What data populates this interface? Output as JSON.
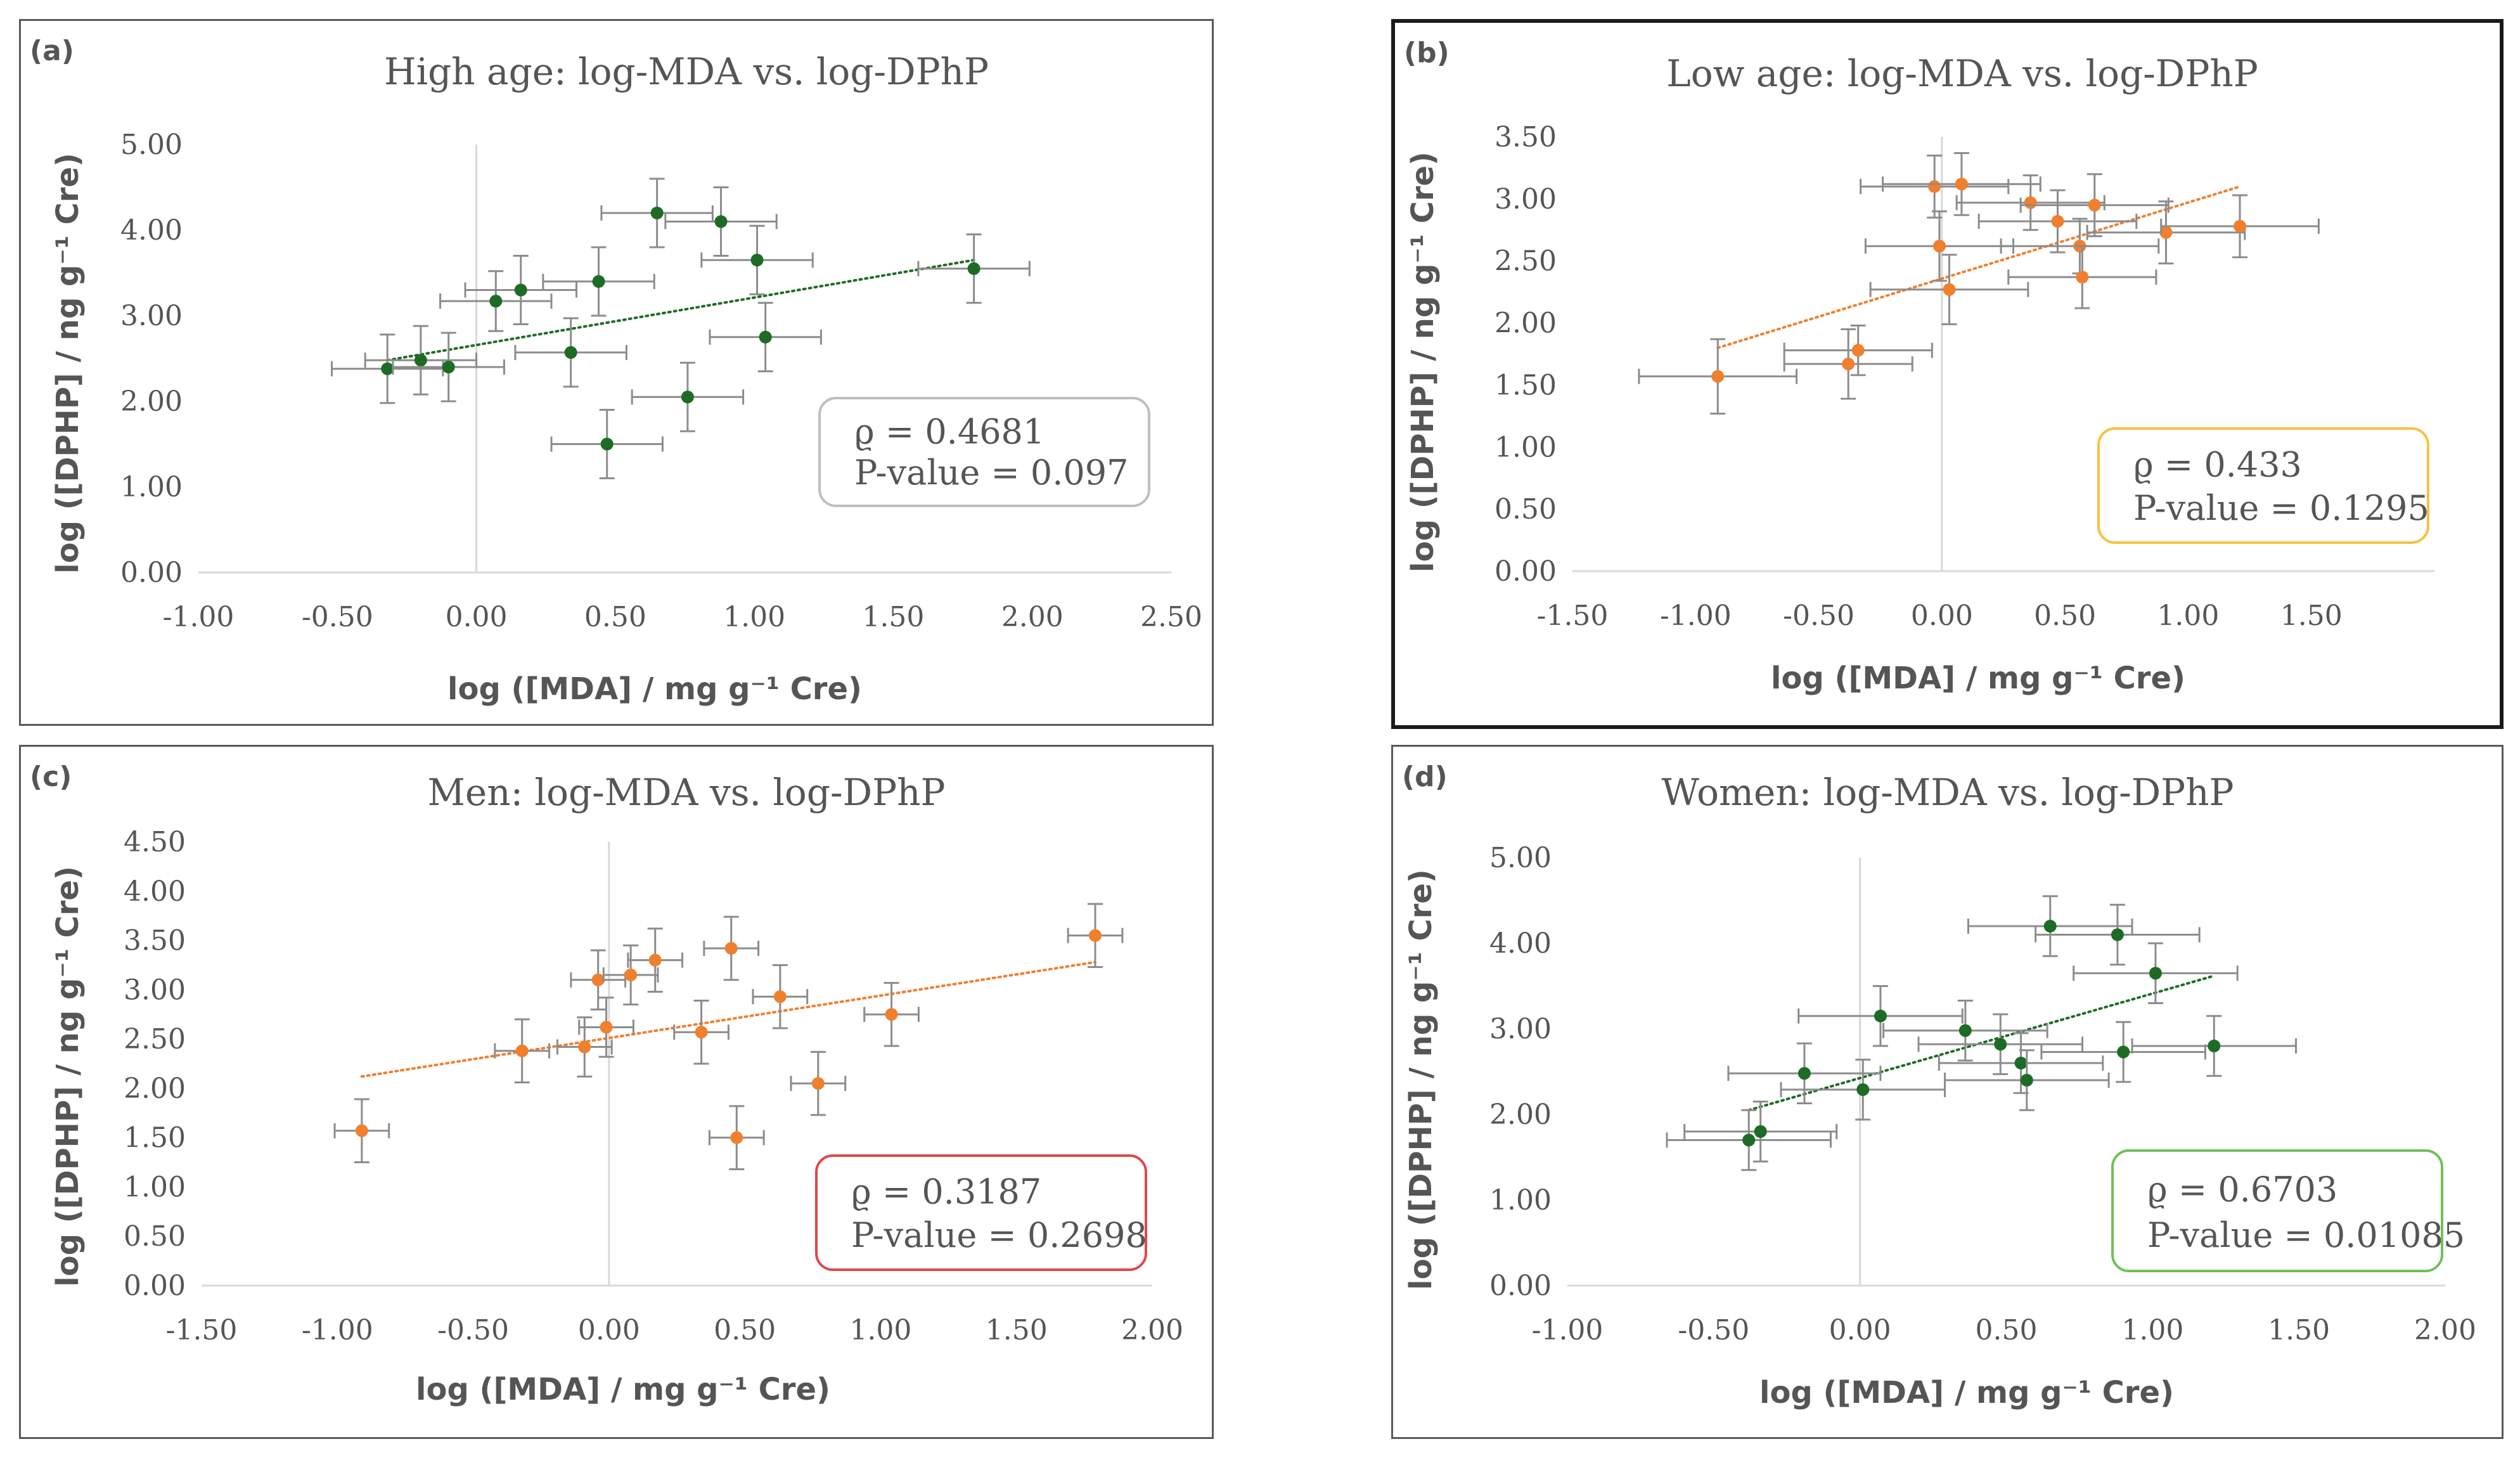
{
  "colors": {
    "green": "#1e6b25",
    "orange": "#f07f2e",
    "errorbar": "#8c8c8c",
    "axis": "#d9d9d9",
    "text": "#555555"
  },
  "chart_data": [
    {
      "panel": "(a)",
      "type": "scatter",
      "title": "High age: log-MDA vs. log-DPhP",
      "xlabel": "log ([MDA] / mg g⁻¹ Cre)",
      "ylabel": "log ([DPHP] / ng g⁻¹ Cre)",
      "xlim": [
        -1.0,
        2.5
      ],
      "ylim": [
        0.0,
        5.0
      ],
      "xticks": [
        "-1.00",
        "-0.50",
        "0.00",
        "0.50",
        "1.00",
        "1.50",
        "2.00",
        "2.50"
      ],
      "yticks": [
        "0.00",
        "1.00",
        "2.00",
        "3.00",
        "4.00",
        "5.00"
      ],
      "series_color": "green",
      "points": [
        {
          "x": -0.32,
          "y": 2.38,
          "xerr": 0.2,
          "yerr": 0.4
        },
        {
          "x": -0.2,
          "y": 2.48,
          "xerr": 0.2,
          "yerr": 0.4
        },
        {
          "x": -0.1,
          "y": 2.4,
          "xerr": 0.2,
          "yerr": 0.4
        },
        {
          "x": 0.07,
          "y": 3.17,
          "xerr": 0.2,
          "yerr": 0.35
        },
        {
          "x": 0.16,
          "y": 3.3,
          "xerr": 0.2,
          "yerr": 0.4
        },
        {
          "x": 0.34,
          "y": 2.57,
          "xerr": 0.2,
          "yerr": 0.4
        },
        {
          "x": 0.44,
          "y": 3.4,
          "xerr": 0.2,
          "yerr": 0.4
        },
        {
          "x": 0.47,
          "y": 1.5,
          "xerr": 0.2,
          "yerr": 0.4
        },
        {
          "x": 0.65,
          "y": 4.2,
          "xerr": 0.2,
          "yerr": 0.4
        },
        {
          "x": 0.76,
          "y": 2.05,
          "xerr": 0.2,
          "yerr": 0.4
        },
        {
          "x": 0.88,
          "y": 4.1,
          "xerr": 0.2,
          "yerr": 0.4
        },
        {
          "x": 1.01,
          "y": 3.65,
          "xerr": 0.2,
          "yerr": 0.4
        },
        {
          "x": 1.04,
          "y": 2.75,
          "xerr": 0.2,
          "yerr": 0.4
        },
        {
          "x": 1.79,
          "y": 3.55,
          "xerr": 0.2,
          "yerr": 0.4
        }
      ],
      "trendline": {
        "x": [
          -0.32,
          1.79
        ],
        "y": [
          2.48,
          3.65
        ]
      },
      "stats": {
        "rho": "ϱ = 0.4681",
        "p": "P-value = 0.097",
        "box_color": "#bfbfbf"
      }
    },
    {
      "panel": "(b)",
      "type": "scatter",
      "title": "Low age: log-MDA vs. log-DPhP",
      "xlabel": "log ([MDA] / mg g⁻¹ Cre)",
      "ylabel": "log ([DPHP] / ng g⁻¹ Cre)",
      "xlim": [
        -1.5,
        2.0
      ],
      "ylim": [
        0.0,
        3.5
      ],
      "xticks": [
        "-1.50",
        "-1.00",
        "-0.50",
        "0.00",
        "0.50",
        "1.00",
        "1.50"
      ],
      "yticks": [
        "0.00",
        "0.50",
        "1.00",
        "1.50",
        "2.00",
        "2.50",
        "3.00",
        "3.50"
      ],
      "series_color": "orange",
      "points": [
        {
          "x": -0.91,
          "y": 1.57,
          "xerr": 0.32,
          "yerr": 0.3
        },
        {
          "x": -0.38,
          "y": 1.67,
          "xerr": 0.26,
          "yerr": 0.28
        },
        {
          "x": -0.34,
          "y": 1.78,
          "xerr": 0.3,
          "yerr": 0.2
        },
        {
          "x": -0.03,
          "y": 3.1,
          "xerr": 0.3,
          "yerr": 0.25
        },
        {
          "x": -0.01,
          "y": 2.62,
          "xerr": 0.3,
          "yerr": 0.28
        },
        {
          "x": 0.03,
          "y": 2.27,
          "xerr": 0.32,
          "yerr": 0.28
        },
        {
          "x": 0.08,
          "y": 3.12,
          "xerr": 0.32,
          "yerr": 0.25
        },
        {
          "x": 0.36,
          "y": 2.97,
          "xerr": 0.3,
          "yerr": 0.22
        },
        {
          "x": 0.47,
          "y": 2.82,
          "xerr": 0.32,
          "yerr": 0.25
        },
        {
          "x": 0.56,
          "y": 2.62,
          "xerr": 0.32,
          "yerr": 0.22
        },
        {
          "x": 0.57,
          "y": 2.37,
          "xerr": 0.3,
          "yerr": 0.25
        },
        {
          "x": 0.62,
          "y": 2.95,
          "xerr": 0.3,
          "yerr": 0.25
        },
        {
          "x": 0.91,
          "y": 2.73,
          "xerr": 0.32,
          "yerr": 0.25
        },
        {
          "x": 1.21,
          "y": 2.78,
          "xerr": 0.32,
          "yerr": 0.25
        }
      ],
      "trendline": {
        "x": [
          -0.91,
          1.21
        ],
        "y": [
          1.8,
          3.1
        ]
      },
      "stats": {
        "rho": "ϱ = 0.433",
        "p": "P-value = 0.1295",
        "box_color": "#f5c242"
      }
    },
    {
      "panel": "(c)",
      "type": "scatter",
      "title": "Men: log-MDA vs. log-DPhP",
      "xlabel": "log ([MDA] / mg g⁻¹ Cre)",
      "ylabel": "log ([DPHP] / ng g⁻¹ Cre)",
      "xlim": [
        -1.5,
        2.0
      ],
      "ylim": [
        0.0,
        4.5
      ],
      "xticks": [
        "-1.50",
        "-1.00",
        "-0.50",
        "0.00",
        "0.50",
        "1.00",
        "1.50",
        "2.00"
      ],
      "yticks": [
        "0.00",
        "0.50",
        "1.00",
        "1.50",
        "2.00",
        "2.50",
        "3.00",
        "3.50",
        "4.00",
        "4.50"
      ],
      "series_color": "orange",
      "points": [
        {
          "x": -0.91,
          "y": 1.57,
          "xerr": 0.1,
          "yerr": 0.32
        },
        {
          "x": -0.32,
          "y": 2.38,
          "xerr": 0.1,
          "yerr": 0.32
        },
        {
          "x": -0.09,
          "y": 2.42,
          "xerr": 0.1,
          "yerr": 0.3
        },
        {
          "x": -0.04,
          "y": 3.1,
          "xerr": 0.1,
          "yerr": 0.3
        },
        {
          "x": -0.01,
          "y": 2.62,
          "xerr": 0.1,
          "yerr": 0.3
        },
        {
          "x": 0.08,
          "y": 3.15,
          "xerr": 0.1,
          "yerr": 0.3
        },
        {
          "x": 0.17,
          "y": 3.3,
          "xerr": 0.1,
          "yerr": 0.32
        },
        {
          "x": 0.34,
          "y": 2.57,
          "xerr": 0.1,
          "yerr": 0.32
        },
        {
          "x": 0.45,
          "y": 3.42,
          "xerr": 0.1,
          "yerr": 0.32
        },
        {
          "x": 0.47,
          "y": 1.5,
          "xerr": 0.1,
          "yerr": 0.32
        },
        {
          "x": 0.63,
          "y": 2.93,
          "xerr": 0.1,
          "yerr": 0.32
        },
        {
          "x": 0.77,
          "y": 2.05,
          "xerr": 0.1,
          "yerr": 0.32
        },
        {
          "x": 1.04,
          "y": 2.75,
          "xerr": 0.1,
          "yerr": 0.32
        },
        {
          "x": 1.79,
          "y": 3.55,
          "xerr": 0.1,
          "yerr": 0.32
        }
      ],
      "trendline": {
        "x": [
          -0.91,
          1.79
        ],
        "y": [
          2.12,
          3.28
        ]
      },
      "stats": {
        "rho": "ϱ = 0.3187",
        "p": "P-value = 0.2698",
        "box_color": "#e0474c"
      }
    },
    {
      "panel": "(d)",
      "type": "scatter",
      "title": "Women: log-MDA vs. log-DPhP",
      "xlabel": "log ([MDA] / mg g⁻¹ Cre)",
      "ylabel": "log ([DPHP] / ng g⁻¹ Cre)",
      "xlim": [
        -1.0,
        2.0
      ],
      "ylim": [
        0.0,
        5.0
      ],
      "xticks": [
        "-1.00",
        "-0.50",
        "0.00",
        "0.50",
        "1.00",
        "1.50",
        "2.00"
      ],
      "yticks": [
        "0.00",
        "1.00",
        "2.00",
        "3.00",
        "4.00",
        "5.00"
      ],
      "series_color": "green",
      "points": [
        {
          "x": -0.38,
          "y": 1.7,
          "xerr": 0.28,
          "yerr": 0.35
        },
        {
          "x": -0.34,
          "y": 1.8,
          "xerr": 0.26,
          "yerr": 0.35
        },
        {
          "x": -0.19,
          "y": 2.48,
          "xerr": 0.26,
          "yerr": 0.35
        },
        {
          "x": 0.01,
          "y": 2.29,
          "xerr": 0.28,
          "yerr": 0.35
        },
        {
          "x": 0.07,
          "y": 3.15,
          "xerr": 0.28,
          "yerr": 0.35
        },
        {
          "x": 0.36,
          "y": 2.98,
          "xerr": 0.28,
          "yerr": 0.35
        },
        {
          "x": 0.48,
          "y": 2.82,
          "xerr": 0.28,
          "yerr": 0.35
        },
        {
          "x": 0.55,
          "y": 2.6,
          "xerr": 0.28,
          "yerr": 0.35
        },
        {
          "x": 0.57,
          "y": 2.4,
          "xerr": 0.28,
          "yerr": 0.35
        },
        {
          "x": 0.65,
          "y": 4.2,
          "xerr": 0.28,
          "yerr": 0.35
        },
        {
          "x": 0.88,
          "y": 4.1,
          "xerr": 0.28,
          "yerr": 0.35
        },
        {
          "x": 0.9,
          "y": 2.73,
          "xerr": 0.28,
          "yerr": 0.35
        },
        {
          "x": 1.01,
          "y": 3.65,
          "xerr": 0.28,
          "yerr": 0.35
        },
        {
          "x": 1.21,
          "y": 2.8,
          "xerr": 0.28,
          "yerr": 0.35
        }
      ],
      "trendline": {
        "x": [
          -0.38,
          1.21
        ],
        "y": [
          2.05,
          3.62
        ]
      },
      "stats": {
        "rho": "ϱ = 0.6703",
        "p": "P-value = 0.01085",
        "box_color": "#70c05a"
      }
    }
  ]
}
